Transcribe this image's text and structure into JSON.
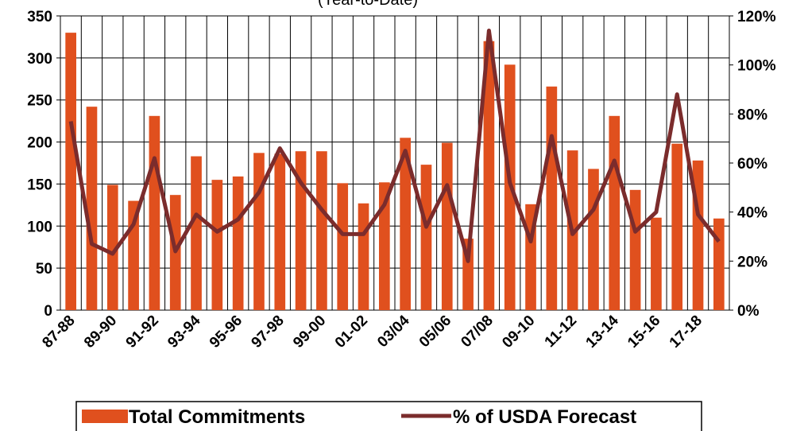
{
  "chart_data": {
    "type": "bar_line",
    "subtitle": "(Year-to-Date)",
    "categories": [
      "87-88",
      null,
      "89-90",
      null,
      "91-92",
      null,
      "93-94",
      null,
      "95-96",
      null,
      "97-98",
      null,
      "99-00",
      null,
      "01-02",
      null,
      "03/04",
      null,
      "05/06",
      null,
      "07/08",
      null,
      "09-10",
      null,
      "11-12",
      null,
      "13-14",
      null,
      "15-16",
      null,
      "17-18",
      null
    ],
    "series": [
      {
        "name": "Total Commitments",
        "color": "#e0501e",
        "axis": "y",
        "values": [
          330,
          242,
          149,
          130,
          231,
          137,
          183,
          155,
          159,
          187,
          186,
          189,
          189,
          151,
          127,
          152,
          205,
          173,
          199,
          85,
          320,
          292,
          126,
          266,
          190,
          168,
          231,
          143,
          110,
          198,
          178,
          109
        ]
      },
      {
        "name": "% of USDA Forecast",
        "color": "#7b2c2c",
        "axis": "y2",
        "values": [
          77,
          27,
          23,
          35,
          62,
          24,
          39,
          32,
          37,
          48,
          66,
          52,
          41,
          31,
          31,
          43,
          65,
          34,
          51,
          20,
          114,
          52,
          28,
          71,
          31,
          41,
          61,
          32,
          40,
          88,
          39,
          28
        ]
      }
    ],
    "ylim": [
      0,
      350
    ],
    "yticks": [
      0,
      50,
      100,
      150,
      200,
      250,
      300,
      350
    ],
    "y2lim": [
      0,
      120
    ],
    "y2ticks": [
      {
        "value": 0,
        "label": "0%"
      },
      {
        "value": 20,
        "label": "20%"
      },
      {
        "value": 40,
        "label": "40%"
      },
      {
        "value": 60,
        "label": "60%"
      },
      {
        "value": 80,
        "label": "80%"
      },
      {
        "value": 100,
        "label": "100%"
      },
      {
        "value": 120,
        "label": "120%"
      }
    ],
    "grid": true,
    "legend": "bottom"
  }
}
